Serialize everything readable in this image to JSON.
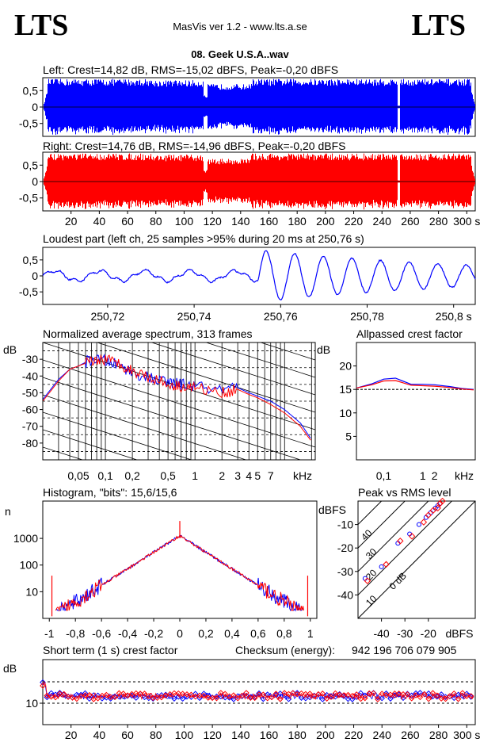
{
  "header": {
    "logo_left": "LTS",
    "logo_right": "LTS",
    "app_title": "MasVis ver 1.2 - www.lts.a.se",
    "file_name": "08. Geek U.S.A..wav"
  },
  "colors": {
    "left": "#0000ff",
    "right": "#ff0000",
    "grid": "#000000"
  },
  "chart_data": [
    {
      "id": "left-waveform",
      "type": "area",
      "title": "Left: Crest=14,82 dB, RMS=-15,02 dBFS, Peak=-0,20 dBFS",
      "yticks": [
        "0,5",
        "0",
        "-0,5"
      ],
      "ylim": [
        -1,
        1
      ],
      "xlim": [
        0,
        306
      ]
    },
    {
      "id": "right-waveform",
      "type": "area",
      "title": "Right: Crest=14,76 dB, RMS=-14,96 dBFS, Peak=-0,20 dBFS",
      "yticks": [
        "0,5",
        "0",
        "-0,5"
      ],
      "xticks": [
        "20",
        "40",
        "60",
        "80",
        "100",
        "120",
        "140",
        "160",
        "180",
        "200",
        "220",
        "240",
        "260",
        "280",
        "300 s"
      ],
      "ylim": [
        -1,
        1
      ],
      "xlim": [
        0,
        306
      ]
    },
    {
      "id": "loudest-part",
      "type": "line",
      "title": "Loudest part (left  ch, 25 samples >95% during 20 ms at 250,76 s)",
      "yticks": [
        "0,5",
        "0",
        "-0,5"
      ],
      "xticks": [
        "250,72",
        "250,74",
        "250,76",
        "250,78",
        "250,8 s"
      ],
      "xlim": [
        250.705,
        250.805
      ],
      "ylim": [
        -1,
        1
      ]
    },
    {
      "id": "spectrum",
      "type": "line",
      "title": "Normalized average spectrum, 313 frames",
      "ylabel": "dB",
      "yticks": [
        "-30",
        "-40",
        "-50",
        "-60",
        "-70",
        "-80"
      ],
      "xticks": [
        "0,05",
        "0,1",
        "0,2",
        "0,5",
        "1",
        "2",
        "3",
        "4",
        "5",
        "7",
        "kHz"
      ],
      "x": [
        0.02,
        0.03,
        0.04,
        0.05,
        0.07,
        0.1,
        0.15,
        0.2,
        0.3,
        0.5,
        0.7,
        1,
        2,
        3,
        4,
        5,
        7,
        10,
        15,
        20
      ],
      "series": [
        {
          "values": [
            -54,
            -42,
            -36,
            -34,
            -30,
            -31,
            -34,
            -38,
            -41,
            -44,
            -45,
            -46,
            -49,
            -47,
            -50,
            -52,
            -55,
            -60,
            -68,
            -78
          ]
        },
        {
          "values": [
            -55,
            -43,
            -36,
            -34,
            -31,
            -30,
            -33,
            -37,
            -40,
            -45,
            -46,
            -47,
            -50,
            -48,
            -51,
            -53,
            -57,
            -62,
            -70,
            -79
          ]
        }
      ]
    },
    {
      "id": "allpassed-crest",
      "type": "line",
      "title": "Allpassed crest factor",
      "ylabel": "dB",
      "yticks": [
        "20",
        "15",
        "10",
        "5"
      ],
      "xticks": [
        "0,1",
        "1",
        "2",
        "kHz"
      ],
      "x": [
        0.02,
        0.05,
        0.1,
        0.2,
        0.5,
        1,
        2,
        5,
        10,
        20
      ],
      "series": [
        {
          "values": [
            15.3,
            16.2,
            17.2,
            17.4,
            16.1,
            16.1,
            16.0,
            15.6,
            15.2,
            15.0
          ]
        },
        {
          "values": [
            15.3,
            16.0,
            16.8,
            16.9,
            15.9,
            15.8,
            15.7,
            15.4,
            15.1,
            14.9
          ]
        }
      ],
      "ylim": [
        0,
        25
      ],
      "baseline": 15
    },
    {
      "id": "histogram",
      "type": "line",
      "title": "Histogram, \"bits\": 15,6/15,6",
      "ylabel": "n",
      "yticks": [
        "1000",
        "100",
        "10"
      ],
      "xticks": [
        "-1",
        "-0,8",
        "-0,6",
        "-0,4",
        "-0,2",
        "0",
        "0,2",
        "0,4",
        "0,6",
        "0,8",
        "1"
      ],
      "xlim": [
        -1.05,
        1.05
      ]
    },
    {
      "id": "peak-vs-rms",
      "type": "scatter",
      "title": "Peak vs RMS level",
      "ylabel": "dBFS",
      "yticks": [
        "-10",
        "-20",
        "-30",
        "-40"
      ],
      "xticks": [
        "-40",
        "-30",
        "-20",
        "dBFS"
      ],
      "diagonal_labels": [
        "40",
        "30",
        "20",
        "10",
        "0 dB"
      ],
      "points_left": [
        [
          -47,
          -33
        ],
        [
          -40,
          -28
        ],
        [
          -33,
          -18
        ],
        [
          -28,
          -14
        ],
        [
          -24,
          -10
        ],
        [
          -21,
          -7
        ],
        [
          -19,
          -5
        ],
        [
          -17,
          -3
        ],
        [
          -16,
          -2
        ],
        [
          -15,
          -1
        ]
      ],
      "points_right": [
        [
          -46,
          -34
        ],
        [
          -38,
          -27
        ],
        [
          -32,
          -17
        ],
        [
          -27,
          -15
        ],
        [
          -22,
          -9
        ],
        [
          -20,
          -6
        ],
        [
          -18,
          -4
        ],
        [
          -16,
          -3
        ],
        [
          -15,
          -1
        ],
        [
          -14,
          0
        ]
      ]
    },
    {
      "id": "short-term-crest",
      "type": "scatter",
      "title": "Short term (1 s) crest factor",
      "ylabel": "dB",
      "yticks": [
        "10"
      ],
      "xticks": [
        "20",
        "40",
        "60",
        "80",
        "100",
        "120",
        "140",
        "160",
        "180",
        "200",
        "220",
        "240",
        "260",
        "280",
        "300 s"
      ],
      "checksum_label": "Checksum (energy):",
      "checksum_value": "942 196 706 079 905",
      "xlim": [
        0,
        306
      ]
    }
  ]
}
